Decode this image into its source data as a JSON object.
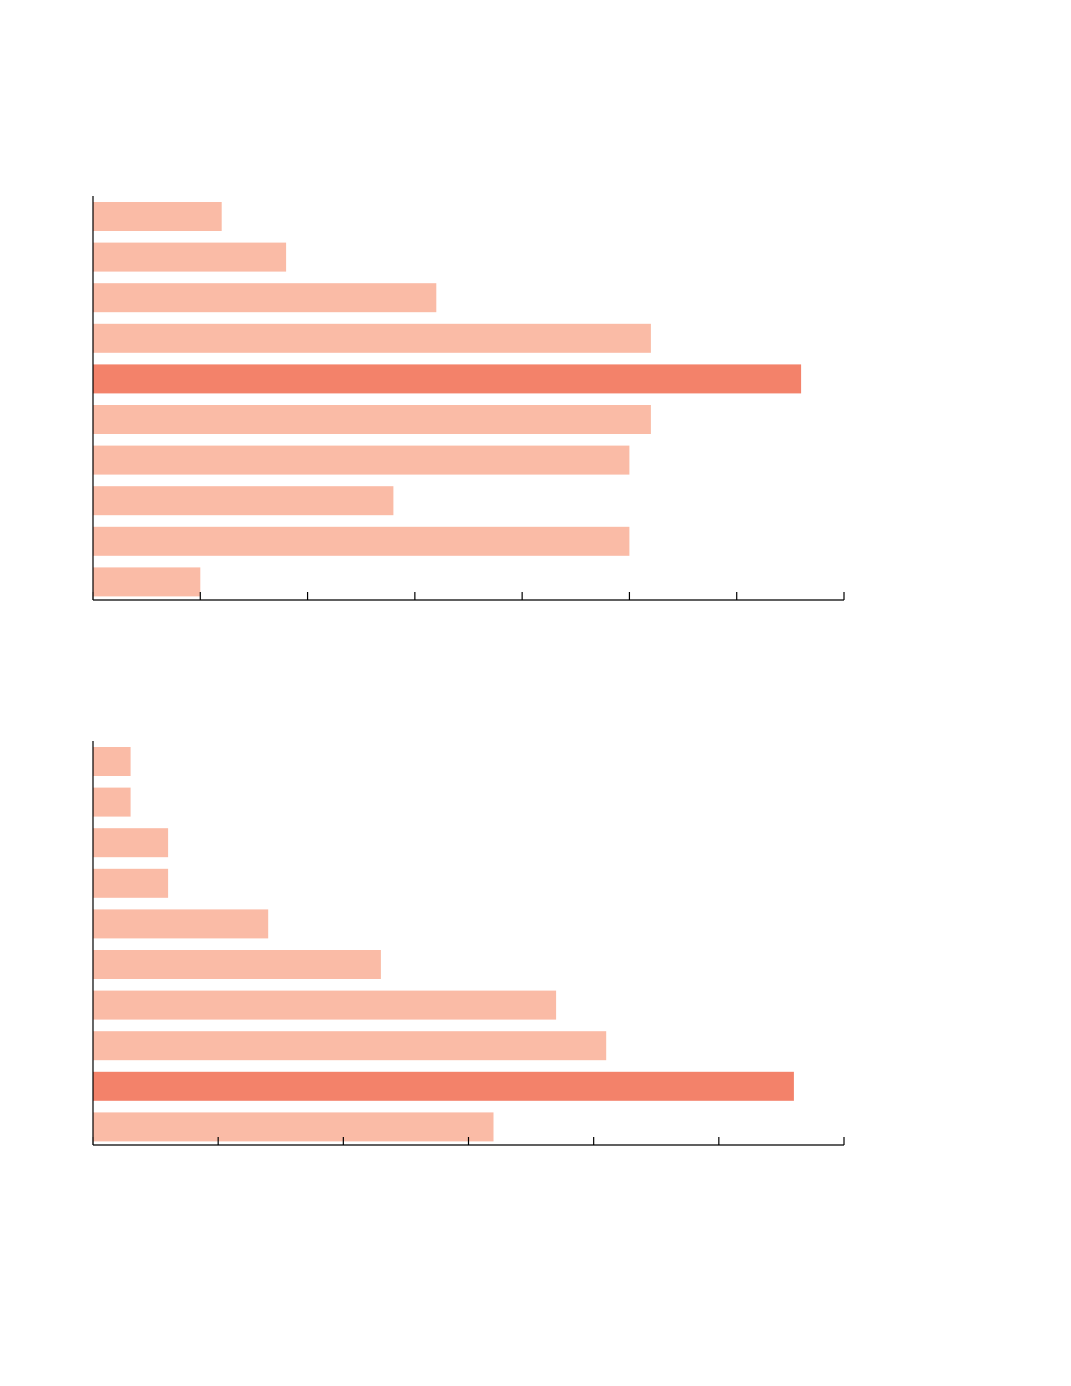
{
  "colors": {
    "bar": "#fabba6",
    "highlight": "#f3826a",
    "axis": "#000000"
  },
  "chart_data": [
    {
      "type": "bar",
      "orientation": "horizontal",
      "title": "",
      "xlabel": "",
      "ylabel": "",
      "xlim": [
        0,
        7
      ],
      "x_ticks": [
        0,
        1,
        2,
        3,
        4,
        5,
        6,
        7
      ],
      "grid": false,
      "categories": [
        "",
        "",
        "",
        "",
        "",
        "",
        "",
        "",
        "",
        ""
      ],
      "values": [
        1.2,
        1.8,
        3.2,
        5.2,
        6.6,
        5.2,
        5.0,
        2.8,
        5.0,
        1.0
      ],
      "highlight_index": 4
    },
    {
      "type": "bar",
      "orientation": "horizontal",
      "title": "",
      "xlabel": "",
      "ylabel": "",
      "xlim": [
        0,
        6
      ],
      "x_ticks": [
        0,
        1,
        2,
        3,
        4,
        5,
        6
      ],
      "grid": false,
      "categories": [
        "",
        "",
        "",
        "",
        "",
        "",
        "",
        "",
        "",
        ""
      ],
      "values": [
        0.3,
        0.3,
        0.6,
        0.6,
        1.4,
        2.3,
        3.7,
        4.1,
        5.6,
        3.2
      ],
      "highlight_index": 8
    }
  ]
}
